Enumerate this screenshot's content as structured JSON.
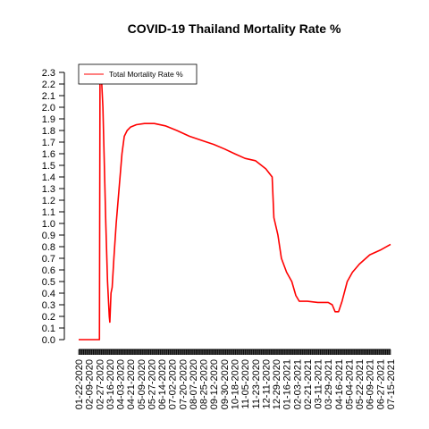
{
  "chart_data": {
    "type": "line",
    "title": "COVID-19 Thailand Mortality Rate %",
    "xlabel": "",
    "ylabel": "",
    "ylim": [
      0,
      2.3
    ],
    "yticks": [
      "0.0",
      "0.1",
      "0.2",
      "0.3",
      "0.4",
      "0.5",
      "0.6",
      "0.7",
      "0.8",
      "0.9",
      "1.0",
      "1.1",
      "1.2",
      "1.3",
      "1.4",
      "1.5",
      "1.6",
      "1.7",
      "1.8",
      "1.9",
      "2.0",
      "2.1",
      "2.2",
      "2.3"
    ],
    "xtick_labels": [
      "01-22-2020",
      "02-09-2020",
      "02-27-2020",
      "03-16-2020",
      "04-03-2020",
      "04-21-2020",
      "05-09-2020",
      "05-27-2020",
      "06-14-2020",
      "07-02-2020",
      "07-20-2020",
      "08-07-2020",
      "08-25-2020",
      "09-12-2020",
      "09-30-2020",
      "10-18-2020",
      "11-05-2020",
      "11-23-2020",
      "12-11-2020",
      "12-29-2020",
      "01-16-2021",
      "02-03-2021",
      "02-21-2021",
      "03-11-2021",
      "03-29-2021",
      "04-16-2021",
      "05-04-2021",
      "05-22-2021",
      "06-09-2021",
      "06-27-2021",
      "07-15-2021"
    ],
    "grid": false,
    "legend_position": "top-left",
    "series": [
      {
        "name": "Total Mortality Rate %",
        "color": "#ff0000",
        "points": [
          [
            "01-22-2020",
            0.0
          ],
          [
            "02-27-2020",
            0.0
          ],
          [
            "02-28-2020",
            2.35
          ],
          [
            "03-01-2020",
            2.3
          ],
          [
            "03-04-2020",
            2.0
          ],
          [
            "03-06-2020",
            1.6
          ],
          [
            "03-09-2020",
            1.0
          ],
          [
            "03-12-2020",
            0.5
          ],
          [
            "03-15-2020",
            0.2
          ],
          [
            "03-16-2020",
            0.15
          ],
          [
            "03-18-2020",
            0.4
          ],
          [
            "03-20-2020",
            0.45
          ],
          [
            "03-23-2020",
            0.7
          ],
          [
            "03-27-2020",
            1.0
          ],
          [
            "04-01-2020",
            1.3
          ],
          [
            "04-06-2020",
            1.6
          ],
          [
            "04-10-2020",
            1.75
          ],
          [
            "04-15-2020",
            1.8
          ],
          [
            "04-21-2020",
            1.83
          ],
          [
            "05-01-2020",
            1.85
          ],
          [
            "05-15-2020",
            1.86
          ],
          [
            "06-01-2020",
            1.86
          ],
          [
            "06-20-2020",
            1.84
          ],
          [
            "07-10-2020",
            1.8
          ],
          [
            "08-01-2020",
            1.75
          ],
          [
            "08-25-2020",
            1.71
          ],
          [
            "09-12-2020",
            1.68
          ],
          [
            "10-01-2020",
            1.64
          ],
          [
            "10-18-2020",
            1.6
          ],
          [
            "11-05-2020",
            1.56
          ],
          [
            "11-23-2020",
            1.54
          ],
          [
            "12-11-2020",
            1.47
          ],
          [
            "12-22-2020",
            1.4
          ],
          [
            "12-25-2020",
            1.05
          ],
          [
            "01-01-2021",
            0.9
          ],
          [
            "01-07-2021",
            0.7
          ],
          [
            "01-16-2021",
            0.58
          ],
          [
            "01-25-2021",
            0.5
          ],
          [
            "02-01-2021",
            0.38
          ],
          [
            "02-07-2021",
            0.33
          ],
          [
            "02-21-2021",
            0.33
          ],
          [
            "03-11-2021",
            0.32
          ],
          [
            "03-29-2021",
            0.32
          ],
          [
            "04-05-2021",
            0.3
          ],
          [
            "04-10-2021",
            0.24
          ],
          [
            "04-16-2021",
            0.24
          ],
          [
            "04-22-2021",
            0.33
          ],
          [
            "05-01-2021",
            0.5
          ],
          [
            "05-10-2021",
            0.58
          ],
          [
            "05-22-2021",
            0.65
          ],
          [
            "06-09-2021",
            0.73
          ],
          [
            "06-27-2021",
            0.77
          ],
          [
            "07-15-2021",
            0.82
          ]
        ]
      }
    ]
  }
}
